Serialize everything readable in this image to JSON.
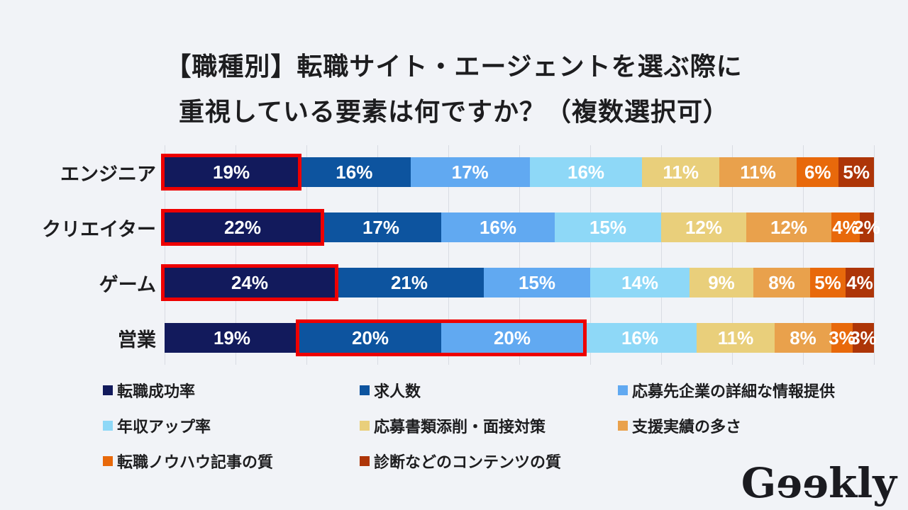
{
  "background": "#f1f3f7",
  "title": {
    "line1": "【職種別】転職サイト・エージェントを選ぶ際に",
    "line2": "重視している要素は何ですか？（複数選択可）"
  },
  "chart_data": {
    "type": "bar",
    "stacked": true,
    "orientation": "horizontal",
    "value_suffix": "%",
    "categories": [
      "エンジニア",
      "クリエイター",
      "ゲーム",
      "営業"
    ],
    "series": [
      {
        "name": "転職成功率",
        "color": "#121a5c",
        "values": [
          19,
          22,
          24,
          19
        ]
      },
      {
        "name": "求人数",
        "color": "#0d549f",
        "values": [
          16,
          17,
          21,
          20
        ]
      },
      {
        "name": "応募先企業の詳細な情報提供",
        "color": "#61a9f1",
        "values": [
          17,
          16,
          15,
          20
        ]
      },
      {
        "name": "年収アップ率",
        "color": "#8ed8f7",
        "values": [
          16,
          15,
          14,
          16
        ]
      },
      {
        "name": "応募書類添削・面接対策",
        "color": "#e9cf7b",
        "values": [
          11,
          12,
          9,
          11
        ]
      },
      {
        "name": "支援実績の多さ",
        "color": "#e9a14c",
        "values": [
          11,
          12,
          8,
          8
        ]
      },
      {
        "name": "転職ノウハウ記事の質",
        "color": "#e8690b",
        "values": [
          6,
          4,
          5,
          3
        ]
      },
      {
        "name": "診断などのコンテンツの質",
        "color": "#ad3508",
        "values": [
          5,
          2,
          4,
          3
        ]
      }
    ],
    "highlights": [
      {
        "row": 0,
        "from": 0,
        "to": 0
      },
      {
        "row": 1,
        "from": 0,
        "to": 0
      },
      {
        "row": 2,
        "from": 0,
        "to": 0
      },
      {
        "row": 3,
        "from": 1,
        "to": 2
      }
    ],
    "highlight_color": "#ee0000",
    "gridlines": {
      "interval_percent": 10,
      "color": "#d9dce3"
    },
    "legend_position": "bottom"
  },
  "logo": {
    "g": "G",
    "ee": "ee",
    "rest": "kly"
  }
}
